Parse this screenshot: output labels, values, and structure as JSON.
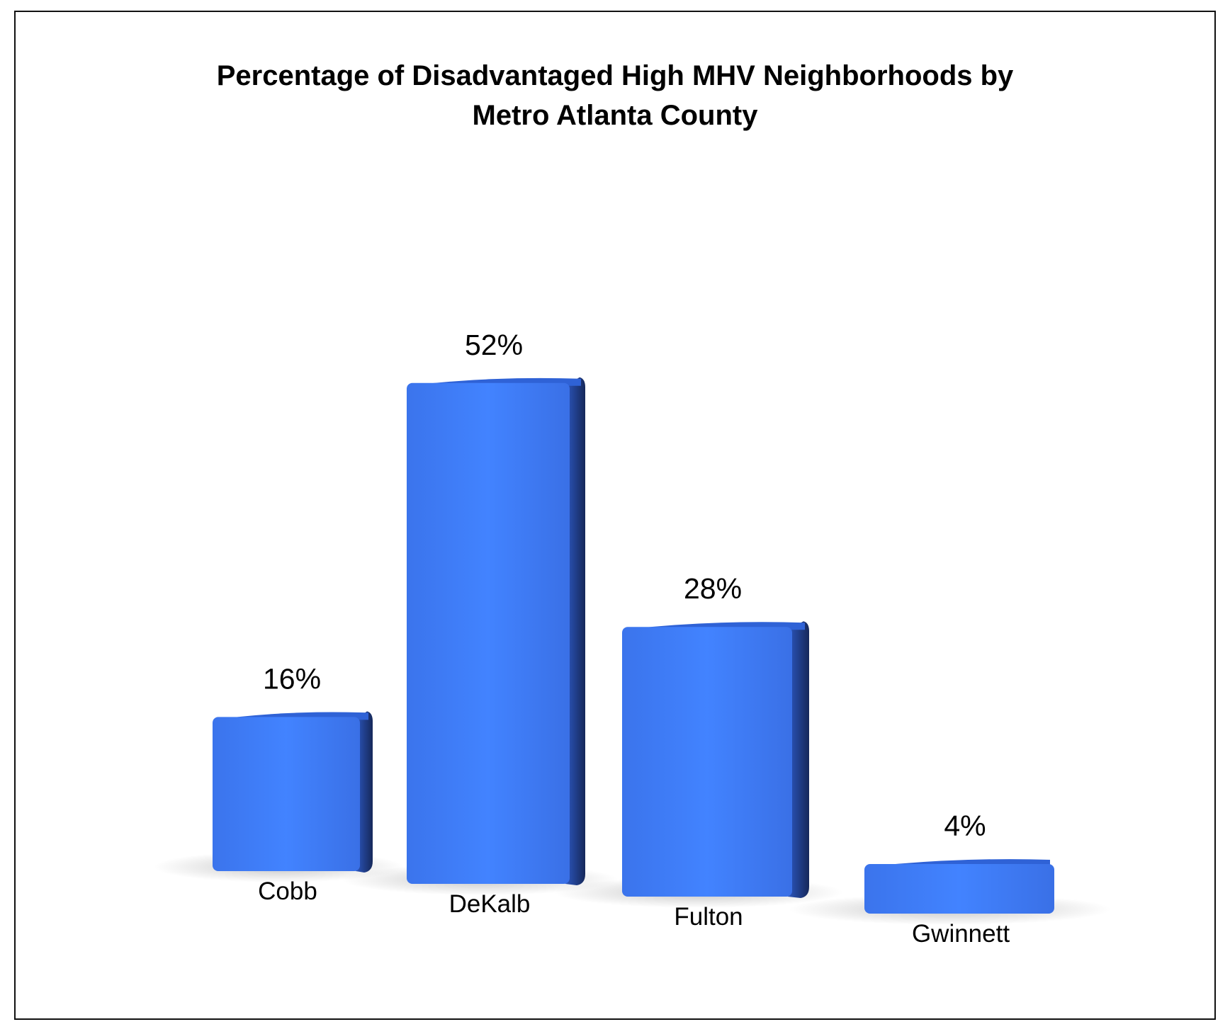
{
  "chart_data": {
    "type": "bar",
    "title": "Percentage of Disadvantaged High MHV Neighborhoods by\nMetro Atlanta County",
    "categories": [
      "Cobb",
      "DeKalb",
      "Fulton",
      "Gwinnett"
    ],
    "values": [
      16,
      52,
      28,
      4
    ],
    "data_labels": [
      "16%",
      "52%",
      "28%",
      "4%"
    ],
    "value_unit": "%",
    "xlabel": "",
    "ylabel": "",
    "grid": false,
    "legend": "none",
    "bar_color": "#3F7BF2",
    "bar_side_color": "#1E3A7A"
  }
}
